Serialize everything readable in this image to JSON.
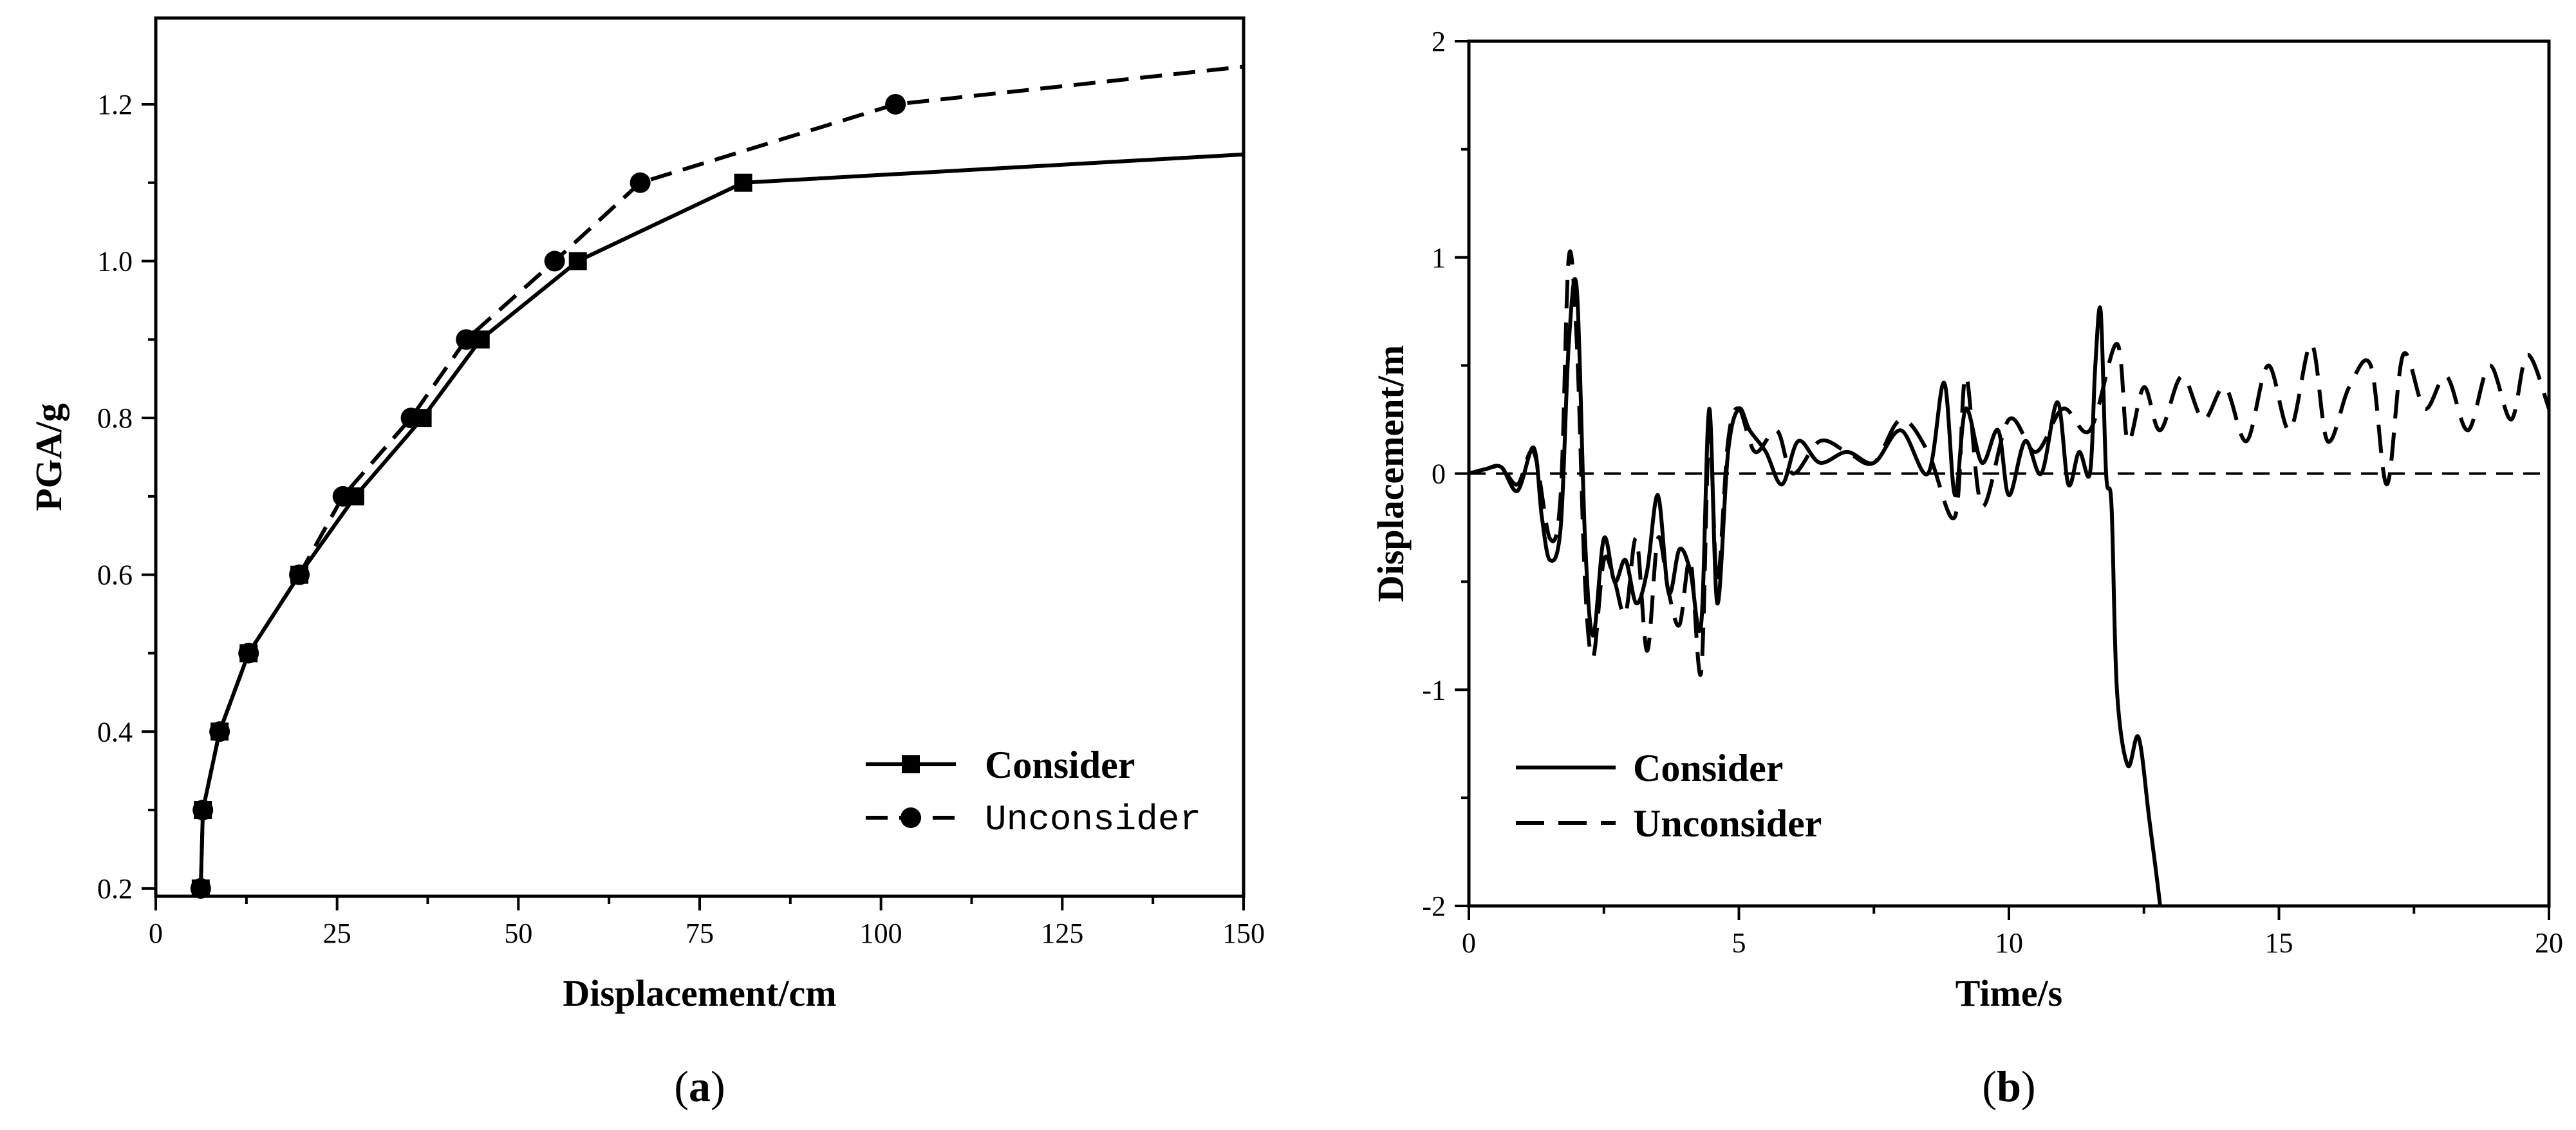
{
  "chart_data": [
    {
      "type": "line",
      "panel_label": "(a)",
      "xlabel": "Displacement/cm",
      "ylabel": "PGA/g",
      "xlim": [
        0,
        150
      ],
      "ylim": [
        0.19,
        1.31
      ],
      "xticks": [
        0,
        25,
        50,
        75,
        100,
        125,
        150
      ],
      "yticks": [
        0.2,
        0.4,
        0.6,
        0.8,
        1.0,
        1.2
      ],
      "xtick_labels": [
        "0",
        "25",
        "50",
        "75",
        "100",
        "125",
        "150"
      ],
      "ytick_labels": [
        "0.2",
        "0.4",
        "0.6",
        "0.8",
        "1.0",
        "1.2"
      ],
      "grid": false,
      "legend_position": "bottom-right",
      "series": [
        {
          "name": "Consider",
          "line_style": "solid",
          "marker": "square",
          "x": [
            6.2,
            6.5,
            8.8,
            12.8,
            19.8,
            27.5,
            36.8,
            44.8,
            58.2,
            81.0,
            150
          ],
          "y": [
            0.2,
            0.3,
            0.4,
            0.5,
            0.6,
            0.7,
            0.8,
            0.9,
            1.0,
            1.1,
            1.136
          ],
          "marker_count": 10
        },
        {
          "name": "Unconsider",
          "line_style": "dashed",
          "marker": "circle",
          "x": [
            6.2,
            6.5,
            8.8,
            12.8,
            19.8,
            25.8,
            35.2,
            42.8,
            55.0,
            66.8,
            102.0,
            150
          ],
          "y": [
            0.2,
            0.3,
            0.4,
            0.5,
            0.6,
            0.7,
            0.8,
            0.9,
            1.0,
            1.1,
            1.2,
            1.248
          ],
          "marker_count": 11
        }
      ]
    },
    {
      "type": "line",
      "panel_label": "(b)",
      "xlabel": "Time/s",
      "ylabel": "Displacement/m",
      "xlim": [
        0,
        20
      ],
      "ylim": [
        -2,
        2
      ],
      "xticks": [
        0,
        5,
        10,
        15,
        20
      ],
      "yticks": [
        -2,
        -1,
        0,
        1,
        2
      ],
      "xtick_labels": [
        "0",
        "5",
        "10",
        "15",
        "20"
      ],
      "ytick_labels": [
        "-2",
        "-1",
        "0",
        "1",
        "2"
      ],
      "grid": false,
      "legend_position": "bottom-left",
      "reference_line": {
        "y": 0,
        "line_style": "dashed"
      },
      "series": [
        {
          "name": "Consider",
          "line_style": "solid",
          "x": [
            0,
            0.3,
            0.6,
            0.9,
            1.2,
            1.35,
            1.5,
            1.7,
            1.85,
            2.0,
            2.15,
            2.3,
            2.5,
            2.7,
            2.9,
            3.1,
            3.3,
            3.5,
            3.7,
            3.9,
            4.1,
            4.3,
            4.45,
            4.6,
            4.8,
            5.0,
            5.2,
            5.5,
            5.8,
            6.1,
            6.5,
            7.0,
            7.5,
            8.0,
            8.5,
            8.8,
            9.0,
            9.2,
            9.5,
            9.8,
            10.0,
            10.3,
            10.6,
            10.9,
            11.1,
            11.3,
            11.5,
            11.6,
            11.7,
            11.8,
            11.9,
            12.0,
            12.2,
            12.4,
            12.6,
            12.8,
            12.9
          ],
          "y": [
            0,
            0.02,
            0.03,
            -0.08,
            0.12,
            -0.2,
            -0.4,
            -0.25,
            0.6,
            0.85,
            -0.3,
            -0.75,
            -0.3,
            -0.5,
            -0.4,
            -0.6,
            -0.45,
            -0.1,
            -0.55,
            -0.35,
            -0.45,
            -0.7,
            0.3,
            -0.6,
            0.1,
            0.3,
            0.2,
            0.1,
            -0.05,
            0.15,
            0.05,
            0.1,
            0.05,
            0.2,
            0.0,
            0.42,
            -0.1,
            0.3,
            0.05,
            0.2,
            -0.1,
            0.15,
            0.0,
            0.33,
            -0.05,
            0.1,
            0.0,
            0.5,
            0.75,
            0.0,
            -0.15,
            -1.0,
            -1.35,
            -1.22,
            -1.6,
            -2.0,
            -2.3
          ]
        },
        {
          "name": "Unconsider",
          "line_style": "dashed",
          "x": [
            0,
            0.3,
            0.6,
            0.9,
            1.2,
            1.5,
            1.7,
            1.85,
            2.0,
            2.15,
            2.3,
            2.5,
            2.7,
            2.9,
            3.1,
            3.3,
            3.5,
            3.7,
            3.9,
            4.1,
            4.3,
            4.45,
            4.6,
            4.8,
            5.0,
            5.3,
            5.7,
            6.0,
            6.5,
            7.0,
            7.5,
            8.0,
            8.5,
            9.0,
            9.2,
            9.5,
            10.0,
            10.5,
            11.0,
            11.5,
            12.0,
            12.2,
            12.5,
            12.8,
            13.2,
            13.6,
            14.0,
            14.4,
            14.8,
            15.2,
            15.6,
            15.9,
            16.3,
            16.7,
            17.0,
            17.3,
            17.7,
            18.1,
            18.5,
            18.9,
            19.3,
            19.6,
            20.0
          ],
          "y": [
            0,
            0.02,
            0.03,
            -0.05,
            0.1,
            -0.3,
            -0.1,
            1.0,
            0.6,
            -0.5,
            -0.85,
            -0.4,
            -0.5,
            -0.65,
            -0.3,
            -0.82,
            -0.3,
            -0.55,
            -0.7,
            -0.4,
            -0.92,
            0.2,
            -0.5,
            0.15,
            0.3,
            0.1,
            0.2,
            0.0,
            0.15,
            0.1,
            0.05,
            0.25,
            0.1,
            -0.2,
            0.45,
            -0.15,
            0.25,
            0.1,
            0.3,
            0.2,
            0.6,
            0.15,
            0.4,
            0.2,
            0.45,
            0.25,
            0.4,
            0.15,
            0.5,
            0.2,
            0.6,
            0.15,
            0.4,
            0.5,
            -0.05,
            0.55,
            0.3,
            0.45,
            0.2,
            0.5,
            0.25,
            0.55,
            0.3
          ]
        }
      ]
    }
  ]
}
